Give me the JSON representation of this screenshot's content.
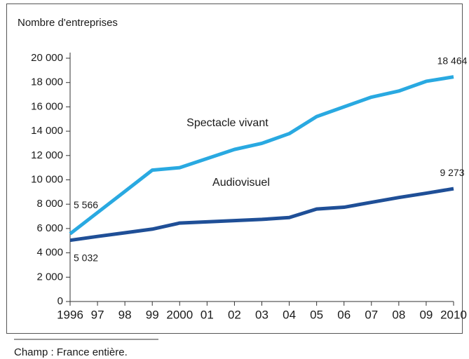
{
  "chart_data": {
    "type": "line",
    "y_label": "Nombre d'entreprises",
    "footnote": "Champ : France entière.",
    "categories": [
      "1996",
      "97",
      "98",
      "99",
      "2000",
      "01",
      "02",
      "03",
      "04",
      "05",
      "06",
      "07",
      "08",
      "09",
      "2010"
    ],
    "series": [
      {
        "name": "Spectacle vivant",
        "color": "#29a9e1",
        "values": [
          5566,
          7310,
          9050,
          10800,
          11000,
          11750,
          12500,
          13000,
          13800,
          15200,
          16000,
          16800,
          17300,
          18100,
          18464
        ],
        "value_labels": [
          "5 566",
          null,
          null,
          null,
          null,
          null,
          null,
          null,
          null,
          null,
          null,
          null,
          null,
          null,
          "18 464"
        ]
      },
      {
        "name": "Audiovisuel",
        "color": "#1f4f97",
        "values": [
          5032,
          5350,
          5650,
          5950,
          6450,
          6550,
          6650,
          6750,
          6900,
          7600,
          7750,
          8150,
          8550,
          8900,
          9273
        ],
        "value_labels": [
          "5 032",
          null,
          null,
          null,
          null,
          null,
          null,
          null,
          null,
          null,
          null,
          null,
          null,
          null,
          "9 273"
        ]
      }
    ],
    "ylim": [
      0,
      20000
    ],
    "yticks": [
      0,
      {
        "value": 2000,
        "label": "2 000"
      },
      {
        "value": 4000,
        "label": "4 000"
      },
      {
        "value": 6000,
        "label": "6 000"
      },
      {
        "value": 8000,
        "label": "8 000"
      },
      {
        "value": 10000,
        "label": "10 000"
      },
      {
        "value": 12000,
        "label": "12 000"
      },
      {
        "value": 14000,
        "label": "14 000"
      },
      {
        "value": 16000,
        "label": "16 000"
      },
      {
        "value": 18000,
        "label": "18 000"
      },
      {
        "value": 20000,
        "label": "20 000"
      }
    ],
    "grid": false
  }
}
